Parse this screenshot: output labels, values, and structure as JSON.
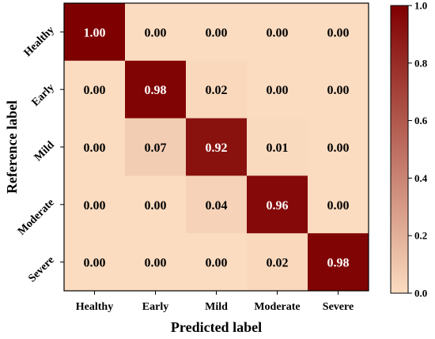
{
  "chart_data": {
    "type": "heatmap",
    "title": "",
    "xlabel": "Predicted label",
    "ylabel": "Reference label",
    "x_categories": [
      "Healthy",
      "Early",
      "Mild",
      "Moderate",
      "Severe"
    ],
    "y_categories": [
      "Healthy",
      "Early",
      "Mild",
      "Moderate",
      "Severe"
    ],
    "values": [
      [
        1.0,
        0.0,
        0.0,
        0.0,
        0.0
      ],
      [
        0.0,
        0.98,
        0.02,
        0.0,
        0.0
      ],
      [
        0.0,
        0.07,
        0.92,
        0.01,
        0.0
      ],
      [
        0.0,
        0.0,
        0.04,
        0.96,
        0.0
      ],
      [
        0.0,
        0.0,
        0.0,
        0.02,
        0.98
      ]
    ],
    "value_format": "0.00",
    "colorbar": {
      "range": [
        0.0,
        1.0
      ],
      "ticks": [
        "0.0",
        "0.2",
        "0.4",
        "0.6",
        "0.8",
        "1.0"
      ],
      "low_color": "#fbdcc0",
      "high_color": "#7f0000"
    }
  }
}
